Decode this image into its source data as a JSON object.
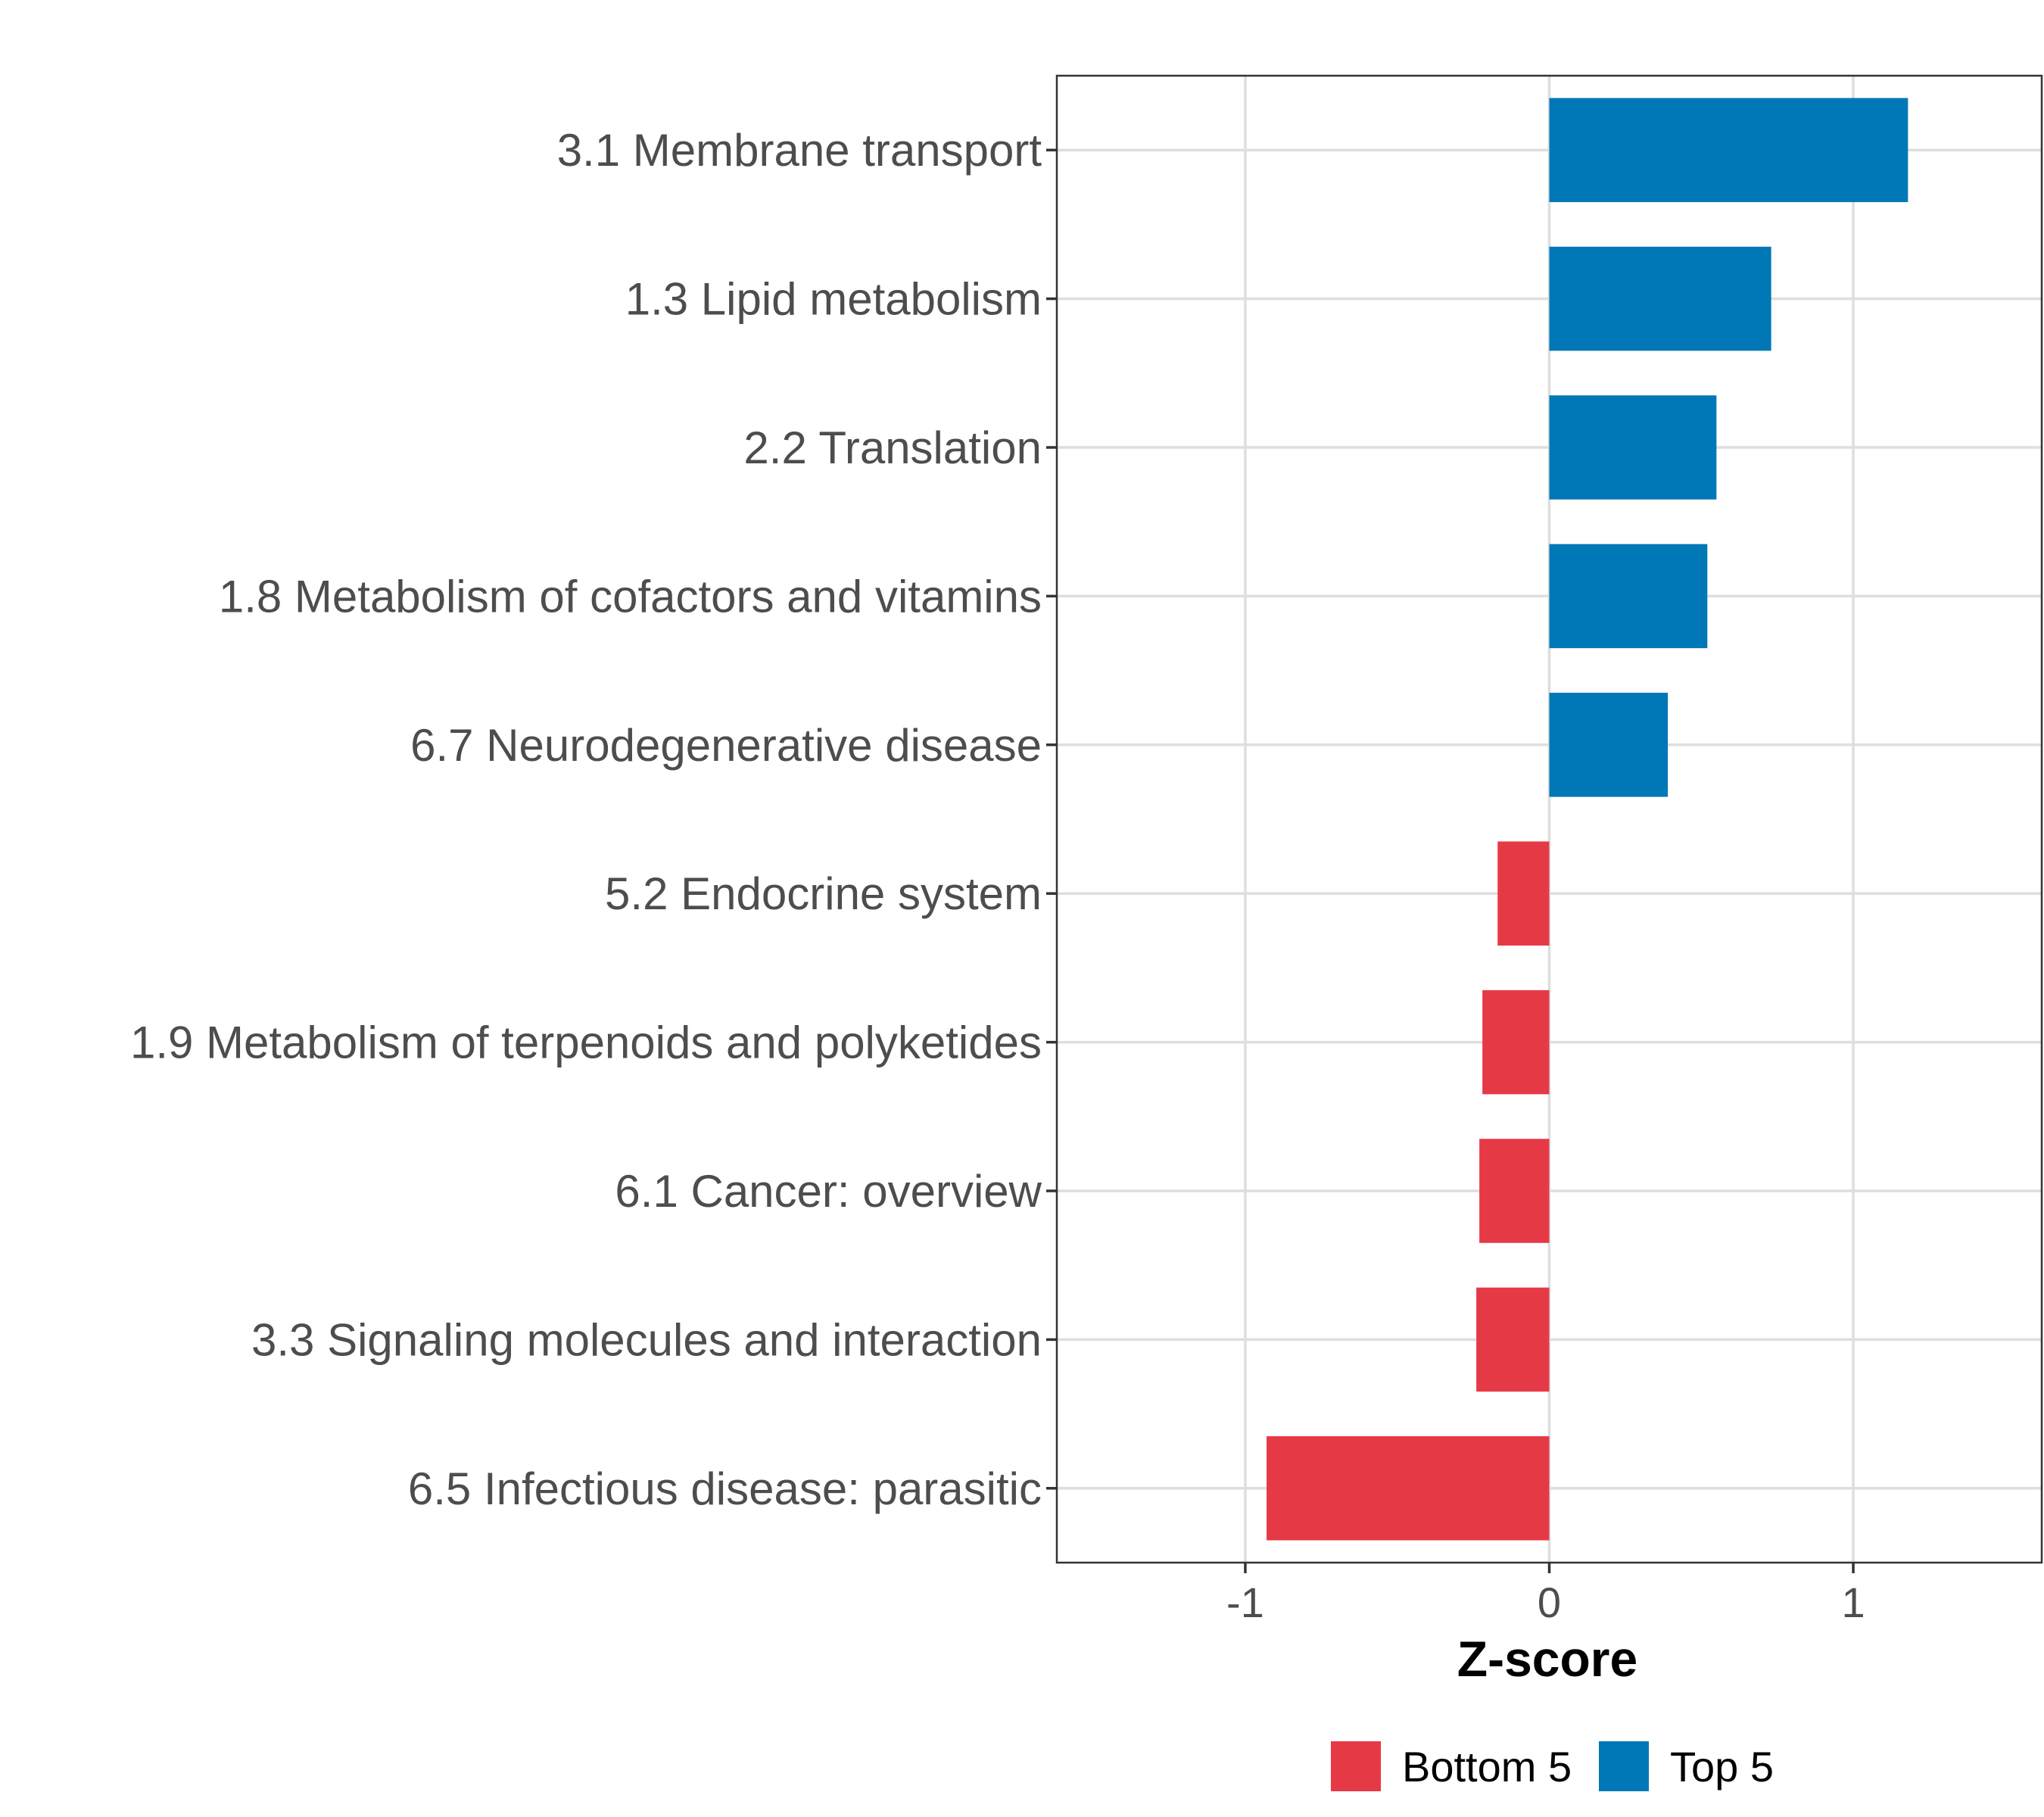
{
  "chart_data": {
    "type": "bar",
    "orientation": "horizontal",
    "categories": [
      "3.1 Membrane transport",
      "1.3 Lipid metabolism",
      "2.2 Translation",
      "1.8 Metabolism of cofactors and vitamins",
      "6.7 Neurodegenerative disease",
      "5.2 Endocrine system",
      "1.9 Metabolism of terpenoids and polyketides",
      "6.1 Cancer: overview",
      "3.3 Signaling molecules and interaction",
      "6.5 Infectious disease: parasitic"
    ],
    "values": [
      1.18,
      0.73,
      0.55,
      0.52,
      0.39,
      -0.17,
      -0.22,
      -0.23,
      -0.24,
      -0.93
    ],
    "groups": [
      "Top 5",
      "Top 5",
      "Top 5",
      "Top 5",
      "Top 5",
      "Bottom 5",
      "Bottom 5",
      "Bottom 5",
      "Bottom 5",
      "Bottom 5"
    ],
    "xlabel": "Z-score",
    "ylabel": "",
    "xlim": [
      -1.62,
      1.62
    ],
    "xticks": [
      -1,
      0,
      1
    ],
    "xtick_labels": [
      "-1",
      "0",
      "1"
    ],
    "grid": true,
    "legend": {
      "position": "bottom",
      "entries": [
        {
          "label": "Bottom 5",
          "color": "#E63946"
        },
        {
          "label": "Top 5",
          "color": "#0077B6"
        }
      ]
    },
    "colors": {
      "Top 5": "#0077B6",
      "Bottom 5": "#E63946"
    }
  }
}
